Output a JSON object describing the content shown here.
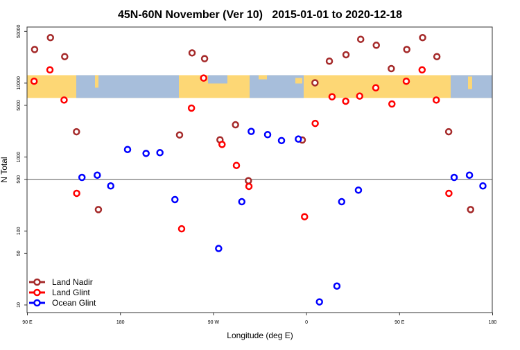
{
  "chart_data": {
    "type": "scatter",
    "title": "45N-60N November (Ver 10)   2015-01-01 to 2020-12-18",
    "xlabel": "Longitude (deg E)",
    "ylabel": "N Total",
    "yscale": "log",
    "ylim": [
      7.5,
      58000
    ],
    "xlim_continuous_deg": [
      90,
      540
    ],
    "x_ticks": [
      {
        "value": 90,
        "label": "90 E"
      },
      {
        "value": 180,
        "label": "180"
      },
      {
        "value": 270,
        "label": "90 W"
      },
      {
        "value": 360,
        "label": "0"
      },
      {
        "value": 450,
        "label": "90 E"
      },
      {
        "value": 540,
        "label": "180"
      }
    ],
    "y_ticks": [
      {
        "value": 10,
        "label": "10"
      },
      {
        "value": 50,
        "label": "50"
      },
      {
        "value": 100,
        "label": "100"
      },
      {
        "value": 500,
        "label": "500"
      },
      {
        "value": 1000,
        "label": "1000"
      },
      {
        "value": 5000,
        "label": "5000"
      },
      {
        "value": 10000,
        "label": "10000"
      },
      {
        "value": 50000,
        "label": "50000"
      }
    ],
    "reference_line": 500,
    "map_band_range": [
      6300,
      12800
    ],
    "legend_position": "bottom-left",
    "series": [
      {
        "name": "Land Nadir",
        "color": "#A52A2A",
        "points": [
          [
            97.0,
            28500
          ],
          [
            112.3,
            41200
          ],
          [
            126.1,
            22800
          ],
          [
            137.5,
            2200
          ],
          [
            158.7,
            195
          ],
          [
            -122.8,
            1990
          ],
          [
            -110.7,
            25600
          ],
          [
            -98.6,
            21400
          ],
          [
            -83.7,
            1710
          ],
          [
            -68.7,
            2730
          ],
          [
            -56.2,
            479
          ],
          [
            -4.1,
            1700
          ],
          [
            8.2,
            10100
          ],
          [
            22.1,
            19800
          ],
          [
            38.2,
            24200
          ],
          [
            52.4,
            39100
          ],
          [
            67.5,
            32500
          ],
          [
            82.0,
            15700
          ]
        ]
      },
      {
        "name": "Land Glint",
        "color": "#FF0000",
        "points": [
          [
            96.5,
            10600
          ],
          [
            111.8,
            15100
          ],
          [
            125.5,
            5900
          ],
          [
            137.7,
            323
          ],
          [
            -120.8,
            107
          ],
          [
            -111.3,
            4590
          ],
          [
            -99.5,
            11700
          ],
          [
            -81.7,
            1480
          ],
          [
            -67.8,
            770
          ],
          [
            -55.7,
            401
          ],
          [
            -1.9,
            156
          ],
          [
            8.4,
            2850
          ],
          [
            24.7,
            6530
          ],
          [
            37.9,
            5690
          ],
          [
            51.4,
            6670
          ],
          [
            67.0,
            8640
          ],
          [
            82.6,
            5220
          ]
        ]
      },
      {
        "name": "Ocean Glint",
        "color": "#0000FF",
        "points": [
          [
            142.8,
            530
          ],
          [
            157.6,
            569
          ],
          [
            170.6,
            407
          ],
          [
            -173.1,
            1265
          ],
          [
            -155.2,
            1120
          ],
          [
            -141.8,
            1146
          ],
          [
            -127.3,
            266
          ],
          [
            -85.0,
            58
          ],
          [
            -62.6,
            249
          ],
          [
            -53.5,
            2220
          ],
          [
            -37.6,
            2010
          ],
          [
            -24.2,
            1670
          ],
          [
            -7.9,
            1750
          ],
          [
            12.5,
            11
          ],
          [
            29.4,
            18
          ],
          [
            34.0,
            249
          ],
          [
            50.2,
            357
          ]
        ]
      }
    ]
  }
}
